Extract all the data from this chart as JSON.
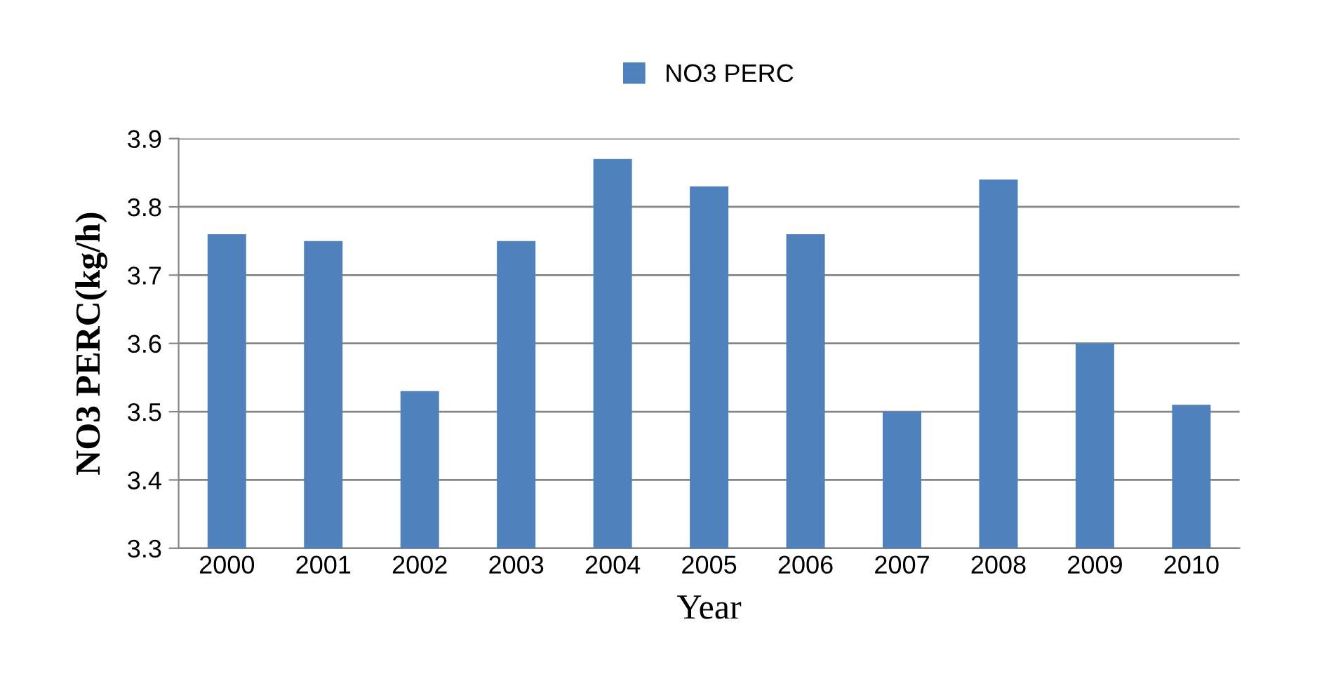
{
  "chart_data": {
    "type": "bar",
    "xlabel": "Year",
    "ylabel": "NO3 PERC(kg/h)",
    "categories": [
      "2000",
      "2001",
      "2002",
      "2003",
      "2004",
      "2005",
      "2006",
      "2007",
      "2008",
      "2009",
      "2010"
    ],
    "series": [
      {
        "name": "NO3 PERC",
        "color": "#4f81bd",
        "values": [
          3.76,
          3.75,
          3.53,
          3.75,
          3.87,
          3.83,
          3.76,
          3.5,
          3.84,
          3.6,
          3.51
        ]
      }
    ],
    "ylim": [
      3.3,
      3.9
    ],
    "yticks": [
      3.3,
      3.4,
      3.5,
      3.6,
      3.7,
      3.8,
      3.9
    ],
    "grid": "y",
    "legend": "top"
  }
}
